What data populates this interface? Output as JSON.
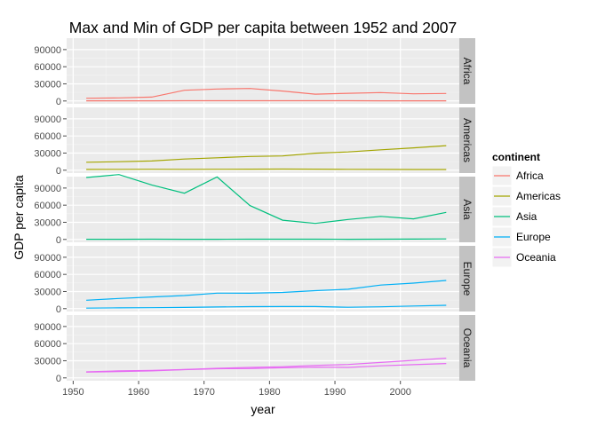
{
  "chart_data": {
    "type": "line",
    "title": "Max and Min of GDP per capita between 1952 and 2007",
    "xlabel": "year",
    "ylabel": "GDP per capita",
    "xlim": [
      1949,
      2009
    ],
    "ylim": [
      -5000,
      110000
    ],
    "x_ticks": [
      1950,
      1960,
      1970,
      1980,
      1990,
      2000
    ],
    "y_ticks": [
      0,
      30000,
      60000,
      90000
    ],
    "y_tick_labels": [
      "0",
      "30000",
      "60000",
      "90000"
    ],
    "legend": {
      "title": "continent",
      "position": "right",
      "entries": [
        "Africa",
        "Americas",
        "Asia",
        "Europe",
        "Oceania"
      ]
    },
    "x": [
      1952,
      1957,
      1962,
      1967,
      1972,
      1977,
      1982,
      1987,
      1992,
      1997,
      2002,
      2007
    ],
    "facets": [
      {
        "label": "Africa",
        "color": "#F8766D",
        "max": [
          4725,
          5487,
          6757,
          18773,
          21011,
          21951,
          17364,
          11864,
          13522,
          14723,
          12521,
          13206
        ],
        "min": [
          299,
          336,
          355,
          413,
          464,
          502,
          462,
          389,
          411,
          312,
          241,
          278
        ]
      },
      {
        "label": "Americas",
        "color": "#A3A500",
        "max": [
          13990,
          14847,
          16173,
          19530,
          21806,
          24073,
          25010,
          29884,
          32004,
          35767,
          39097,
          42952
        ],
        "min": [
          1398,
          1544,
          1662,
          1452,
          1654,
          1874,
          2011,
          1823,
          1456,
          1342,
          1270,
          1202
        ]
      },
      {
        "label": "Asia",
        "color": "#00BF7D",
        "max": [
          108382,
          113523,
          95458,
          80895,
          109348,
          59265,
          33693,
          28118,
          34933,
          40301,
          36023,
          47307
        ],
        "min": [
          331,
          350,
          388,
          349,
          357,
          371,
          424,
          385,
          347,
          415,
          611,
          944
        ]
      },
      {
        "label": "Europe",
        "color": "#00B0F6",
        "max": [
          14734,
          17909,
          20431,
          22966,
          27195,
          26982,
          28398,
          31541,
          33966,
          41283,
          44684,
          49357
        ],
        "min": [
          974,
          1354,
          1710,
          2172,
          2860,
          3528,
          3631,
          3739,
          2497,
          3193,
          4604,
          5937
        ]
      },
      {
        "label": "Oceania",
        "color": "#E76BF3",
        "max": [
          10557,
          12247,
          13176,
          14526,
          16789,
          18334,
          19477,
          21889,
          23425,
          26998,
          30688,
          34435
        ],
        "min": [
          10040,
          10950,
          12218,
          14464,
          16046,
          16233,
          17632,
          19008,
          18364,
          21050,
          23190,
          25185
        ]
      }
    ]
  }
}
